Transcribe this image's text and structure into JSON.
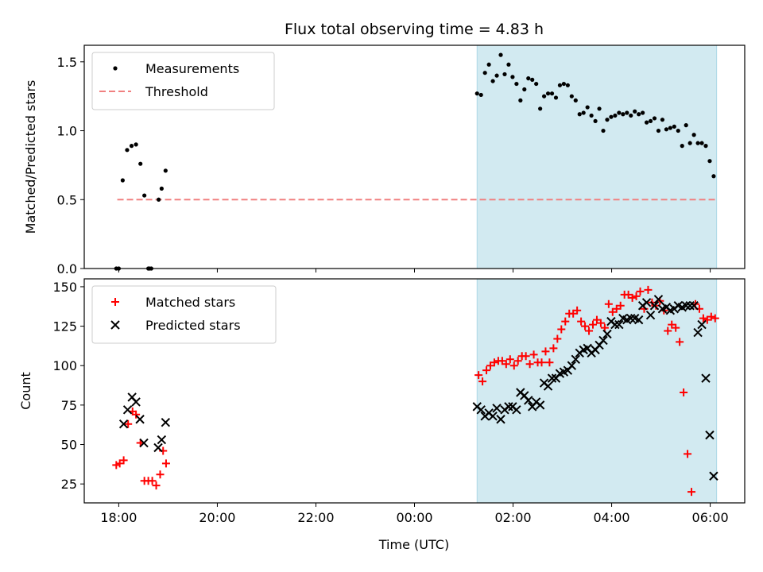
{
  "chart_data": {
    "title": "Flux total observing time = 4.83 h",
    "xlabel": "Time (UTC)",
    "x_unit": "hours since 18:00 UTC",
    "xlim": [
      -0.7,
      12.7
    ],
    "xticks": [
      {
        "value": 0,
        "label": "18:00"
      },
      {
        "value": 2,
        "label": "20:00"
      },
      {
        "value": 4,
        "label": "22:00"
      },
      {
        "value": 6,
        "label": "00:00"
      },
      {
        "value": 8,
        "label": "02:00"
      },
      {
        "value": 10,
        "label": "04:00"
      },
      {
        "value": 12,
        "label": "06:00"
      }
    ],
    "highlight_span": {
      "x0": 7.27,
      "x1": 12.13,
      "color": "#add8e6"
    },
    "subplots": [
      {
        "type": "scatter",
        "ylabel": "Matched/Predicted stars",
        "ylim": [
          0,
          1.62
        ],
        "yticks": [
          {
            "value": 0,
            "label": "0.0"
          },
          {
            "value": 0.5,
            "label": "0.5"
          },
          {
            "value": 1.0,
            "label": "1.0"
          },
          {
            "value": 1.5,
            "label": "1.5"
          }
        ],
        "legend_placement": "upper-left",
        "threshold": {
          "name": "Threshold",
          "value": 0.5,
          "x0": -0.03,
          "x1": 12.13,
          "color": "#f08080"
        },
        "series": [
          {
            "name": "Measurements",
            "marker": "dot",
            "color": "#000000",
            "x": [
              -0.05,
              0.0,
              0.08,
              0.17,
              0.26,
              0.35,
              0.44,
              0.52,
              0.6,
              0.62,
              0.66,
              0.81,
              0.87,
              0.95,
              7.27,
              7.35,
              7.43,
              7.51,
              7.59,
              7.67,
              7.75,
              7.83,
              7.91,
              7.99,
              8.07,
              8.15,
              8.23,
              8.31,
              8.39,
              8.47,
              8.55,
              8.63,
              8.71,
              8.79,
              8.87,
              8.95,
              9.03,
              9.11,
              9.19,
              9.27,
              9.35,
              9.43,
              9.51,
              9.59,
              9.67,
              9.75,
              9.83,
              9.91,
              9.99,
              10.07,
              10.15,
              10.23,
              10.31,
              10.39,
              10.47,
              10.55,
              10.63,
              10.71,
              10.79,
              10.87,
              10.95,
              11.03,
              11.11,
              11.19,
              11.27,
              11.35,
              11.43,
              11.51,
              11.59,
              11.67,
              11.75,
              11.83,
              11.91,
              11.99,
              12.07
            ],
            "y": [
              0.0,
              0.0,
              0.64,
              0.86,
              0.89,
              0.9,
              0.76,
              0.53,
              0.0,
              0.0,
              0.0,
              0.5,
              0.58,
              0.71,
              1.27,
              1.26,
              1.42,
              1.48,
              1.36,
              1.4,
              1.55,
              1.41,
              1.48,
              1.39,
              1.34,
              1.22,
              1.3,
              1.38,
              1.37,
              1.34,
              1.16,
              1.25,
              1.27,
              1.27,
              1.24,
              1.33,
              1.34,
              1.33,
              1.25,
              1.22,
              1.12,
              1.13,
              1.17,
              1.11,
              1.07,
              1.16,
              1.0,
              1.08,
              1.1,
              1.11,
              1.13,
              1.12,
              1.13,
              1.11,
              1.14,
              1.12,
              1.13,
              1.06,
              1.07,
              1.09,
              1.0,
              1.08,
              1.01,
              1.02,
              1.03,
              1.0,
              0.89,
              1.04,
              0.91,
              0.97,
              0.91,
              0.91,
              0.89,
              0.78,
              0.67
            ]
          }
        ]
      },
      {
        "type": "scatter",
        "ylabel": "Count",
        "ylim": [
          13,
          155
        ],
        "yticks": [
          {
            "value": 25,
            "label": "25"
          },
          {
            "value": 50,
            "label": "50"
          },
          {
            "value": 75,
            "label": "75"
          },
          {
            "value": 100,
            "label": "100"
          },
          {
            "value": 125,
            "label": "125"
          },
          {
            "value": 150,
            "label": "150"
          }
        ],
        "legend_placement": "upper-left",
        "series": [
          {
            "name": "Matched stars",
            "marker": "plus",
            "color": "#ff0000",
            "x": [
              -0.05,
              0.02,
              0.1,
              0.19,
              0.28,
              0.35,
              0.44,
              0.52,
              0.6,
              0.68,
              0.76,
              0.84,
              0.9,
              0.96,
              7.3,
              7.38,
              7.46,
              7.54,
              7.62,
              7.7,
              7.78,
              7.86,
              7.94,
              8.02,
              8.1,
              8.18,
              8.26,
              8.34,
              8.42,
              8.5,
              8.58,
              8.66,
              8.74,
              8.82,
              8.9,
              8.98,
              9.06,
              9.14,
              9.22,
              9.3,
              9.38,
              9.46,
              9.54,
              9.62,
              9.7,
              9.78,
              9.86,
              9.94,
              10.02,
              10.1,
              10.18,
              10.26,
              10.34,
              10.42,
              10.5,
              10.58,
              10.66,
              10.74,
              10.82,
              10.9,
              10.98,
              11.06,
              11.14,
              11.22,
              11.3,
              11.38,
              11.46,
              11.54,
              11.62,
              11.7,
              11.78,
              11.86,
              11.94,
              12.02,
              12.1
            ],
            "y": [
              37,
              38,
              40,
              63,
              71,
              69,
              51,
              27,
              27,
              27,
              24,
              31,
              46,
              38,
              94,
              90,
              97,
              100,
              102,
              103,
              103,
              101,
              104,
              100,
              103,
              106,
              106,
              101,
              107,
              102,
              102,
              109,
              102,
              111,
              117,
              123,
              128,
              133,
              133,
              135,
              128,
              125,
              122,
              126,
              129,
              127,
              124,
              139,
              134,
              136,
              138,
              145,
              145,
              143,
              144,
              147,
              136,
              148,
              140,
              138,
              141,
              135,
              122,
              126,
              124,
              115,
              83,
              44,
              20,
              139,
              136,
              130,
              129,
              131,
              130
            ],
            "note_hidden": ""
          },
          {
            "name": "Predicted stars",
            "marker": "x",
            "color": "#000000",
            "x": [
              0.1,
              0.18,
              0.27,
              0.35,
              0.43,
              0.51,
              0.8,
              0.87,
              0.95,
              7.27,
              7.35,
              7.43,
              7.51,
              7.59,
              7.67,
              7.75,
              7.83,
              7.91,
              7.99,
              8.07,
              8.15,
              8.23,
              8.31,
              8.39,
              8.47,
              8.55,
              8.63,
              8.71,
              8.79,
              8.87,
              8.95,
              9.03,
              9.11,
              9.19,
              9.27,
              9.35,
              9.43,
              9.51,
              9.59,
              9.67,
              9.75,
              9.83,
              9.91,
              9.99,
              10.07,
              10.15,
              10.23,
              10.31,
              10.39,
              10.47,
              10.55,
              10.63,
              10.71,
              10.79,
              10.87,
              10.95,
              11.03,
              11.11,
              11.19,
              11.27,
              11.35,
              11.43,
              11.51,
              11.59,
              11.67,
              11.75,
              11.83,
              11.91,
              11.99,
              12.07
            ],
            "y": [
              63,
              72,
              80,
              77,
              66,
              51,
              48,
              53,
              64,
              74,
              72,
              68,
              70,
              68,
              73,
              66,
              72,
              74,
              74,
              72,
              83,
              81,
              78,
              74,
              77,
              75,
              89,
              87,
              92,
              92,
              95,
              96,
              97,
              100,
              104,
              108,
              110,
              111,
              108,
              110,
              113,
              116,
              120,
              128,
              126,
              126,
              130,
              129,
              130,
              130,
              129,
              138,
              140,
              132,
              138,
              142,
              136,
              137,
              135,
              136,
              138,
              137,
              138,
              138,
              138,
              121,
              126,
              92,
              56,
              30
            ]
          }
        ]
      }
    ]
  }
}
